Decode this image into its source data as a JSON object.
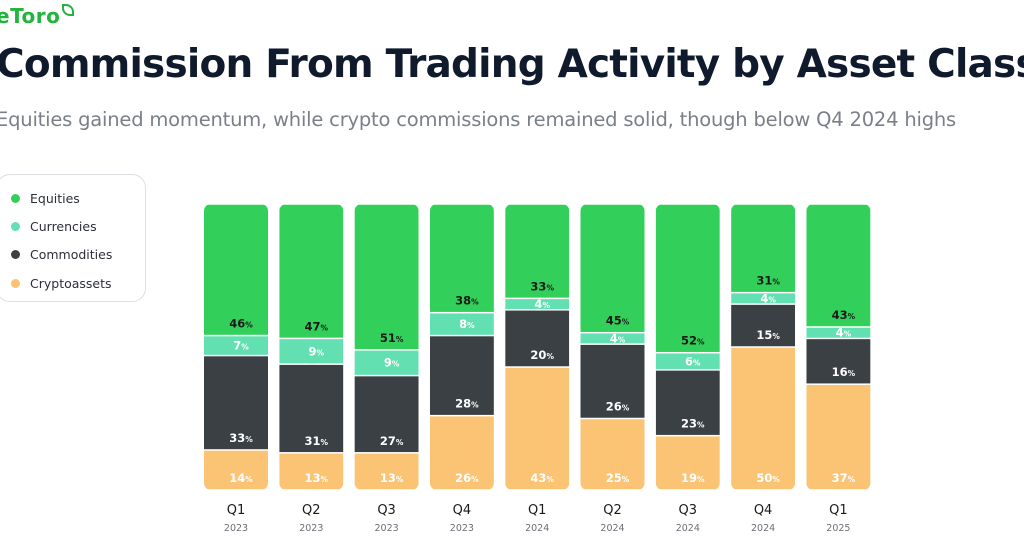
{
  "brand": {
    "logo_text": "eToro"
  },
  "colors": {
    "Equities": "#32d05a",
    "Currencies": "#62e0b2",
    "Commodities": "#3b4044",
    "Cryptoassets": "#fbc374"
  },
  "chart_data": {
    "type": "bar",
    "stacked": true,
    "title": "Commission From Trading Activity by Asset Class",
    "subtitle": "Equities gained momentum, while crypto commissions remained solid, though below Q4 2024 highs",
    "categories": [
      [
        "Q1",
        "2023"
      ],
      [
        "Q2",
        "2023"
      ],
      [
        "Q3",
        "2023"
      ],
      [
        "Q4",
        "2023"
      ],
      [
        "Q1",
        "2024"
      ],
      [
        "Q2",
        "2024"
      ],
      [
        "Q3",
        "2024"
      ],
      [
        "Q4",
        "2024"
      ],
      [
        "Q1",
        "2025"
      ]
    ],
    "unit": "%",
    "series": [
      {
        "name": "Cryptoassets",
        "values": [
          14,
          13,
          13,
          26,
          43,
          25,
          19,
          50,
          37
        ]
      },
      {
        "name": "Commodities",
        "values": [
          33,
          31,
          27,
          28,
          20,
          26,
          23,
          15,
          16
        ]
      },
      {
        "name": "Currencies",
        "values": [
          7,
          9,
          9,
          8,
          4,
          4,
          6,
          4,
          4
        ]
      },
      {
        "name": "Equities",
        "values": [
          46,
          47,
          51,
          38,
          33,
          45,
          52,
          31,
          43
        ]
      }
    ],
    "legend": {
      "position": "left",
      "order": [
        "Equities",
        "Currencies",
        "Commodities",
        "Cryptoassets"
      ]
    },
    "grid": false
  }
}
